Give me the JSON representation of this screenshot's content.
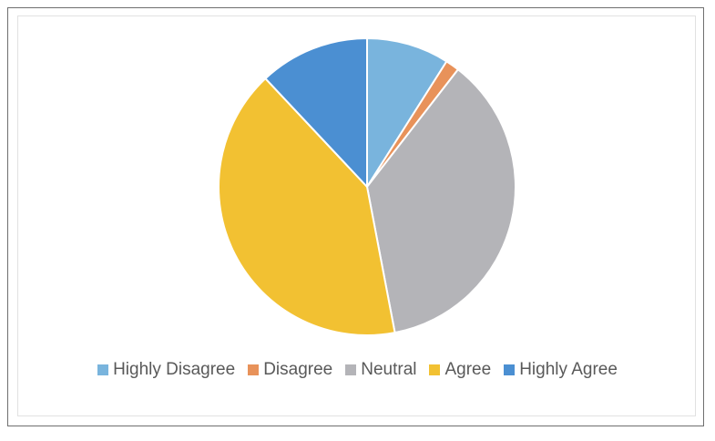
{
  "chart_data": {
    "type": "pie",
    "title": "",
    "categories": [
      "Highly Disagree",
      "Disagree",
      "Neutral",
      "Agree",
      "Highly Agree"
    ],
    "values": [
      9,
      1.5,
      36.5,
      41,
      12
    ],
    "colors": [
      "#79b4dd",
      "#e8925a",
      "#b4b4b8",
      "#f2c132",
      "#4b8fd2"
    ],
    "legend_position": "bottom",
    "start_angle_deg": 0,
    "direction": "clockwise"
  }
}
